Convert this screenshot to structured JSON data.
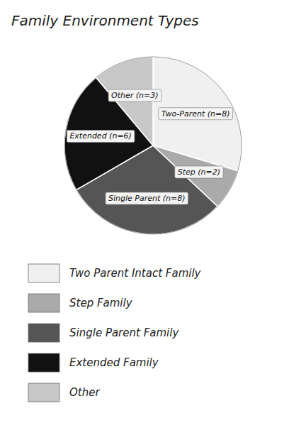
{
  "chart_data": {
    "type": "pie",
    "title": "Family Environment Types",
    "categories": [
      "Two Parent Intact Family",
      "Step Family",
      "Single Parent Family",
      "Extended Family",
      "Other"
    ],
    "values": [
      8,
      2,
      8,
      6,
      3
    ],
    "value_labels": [
      "Two-Parent (n=8)",
      "Step (n=2)",
      "Single Parent (n=8)",
      "Extended (n=6)",
      "Other (n=3)"
    ],
    "colors": [
      "#f0f0f0",
      "#aaaaaa",
      "#555555",
      "#111111",
      "#c8c8c8"
    ],
    "data_labels": true,
    "legend": "bottom"
  }
}
